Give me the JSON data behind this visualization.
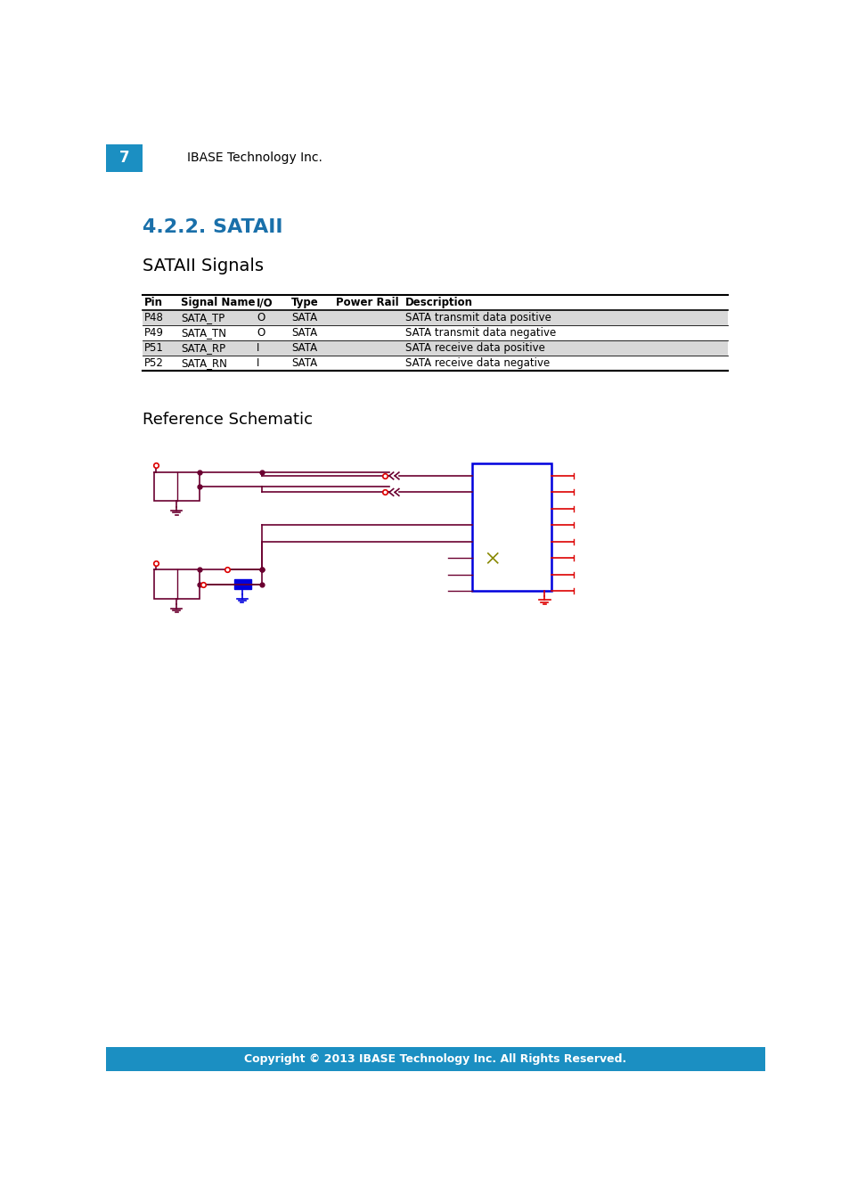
{
  "page_number": "7",
  "header_text": "IBASE Technology Inc.",
  "header_bg": "#1b8fc2",
  "header_text_color": "#ffffff",
  "section_title": "4.2.2. SATAII",
  "section_title_color": "#1a70aa",
  "subsection_title": "SATAII Signals",
  "table_headers": [
    "Pin",
    "Signal Name",
    "I/O",
    "Type",
    "Power Rail",
    "Description"
  ],
  "table_rows": [
    [
      "P48",
      "SATA_TP",
      "O",
      "SATA",
      "",
      "SATA transmit data positive"
    ],
    [
      "P49",
      "SATA_TN",
      "O",
      "SATA",
      "",
      "SATA transmit data negative"
    ],
    [
      "P51",
      "SATA_RP",
      "I",
      "SATA",
      "",
      "SATA receive data positive"
    ],
    [
      "P52",
      "SATA_RN",
      "I",
      "SATA",
      "",
      "SATA receive data negative"
    ]
  ],
  "schematic_title": "Reference Schematic",
  "footer_text": "Copyright © 2013 IBASE Technology Inc. All Rights Reserved.",
  "footer_bg": "#1b8fc2",
  "footer_text_color": "#ffffff",
  "bg_color": "#ffffff",
  "schematic_dark": "#6b0030",
  "schematic_blue": "#0000dd",
  "schematic_red": "#dd0000",
  "schematic_pink": "#cc00aa"
}
